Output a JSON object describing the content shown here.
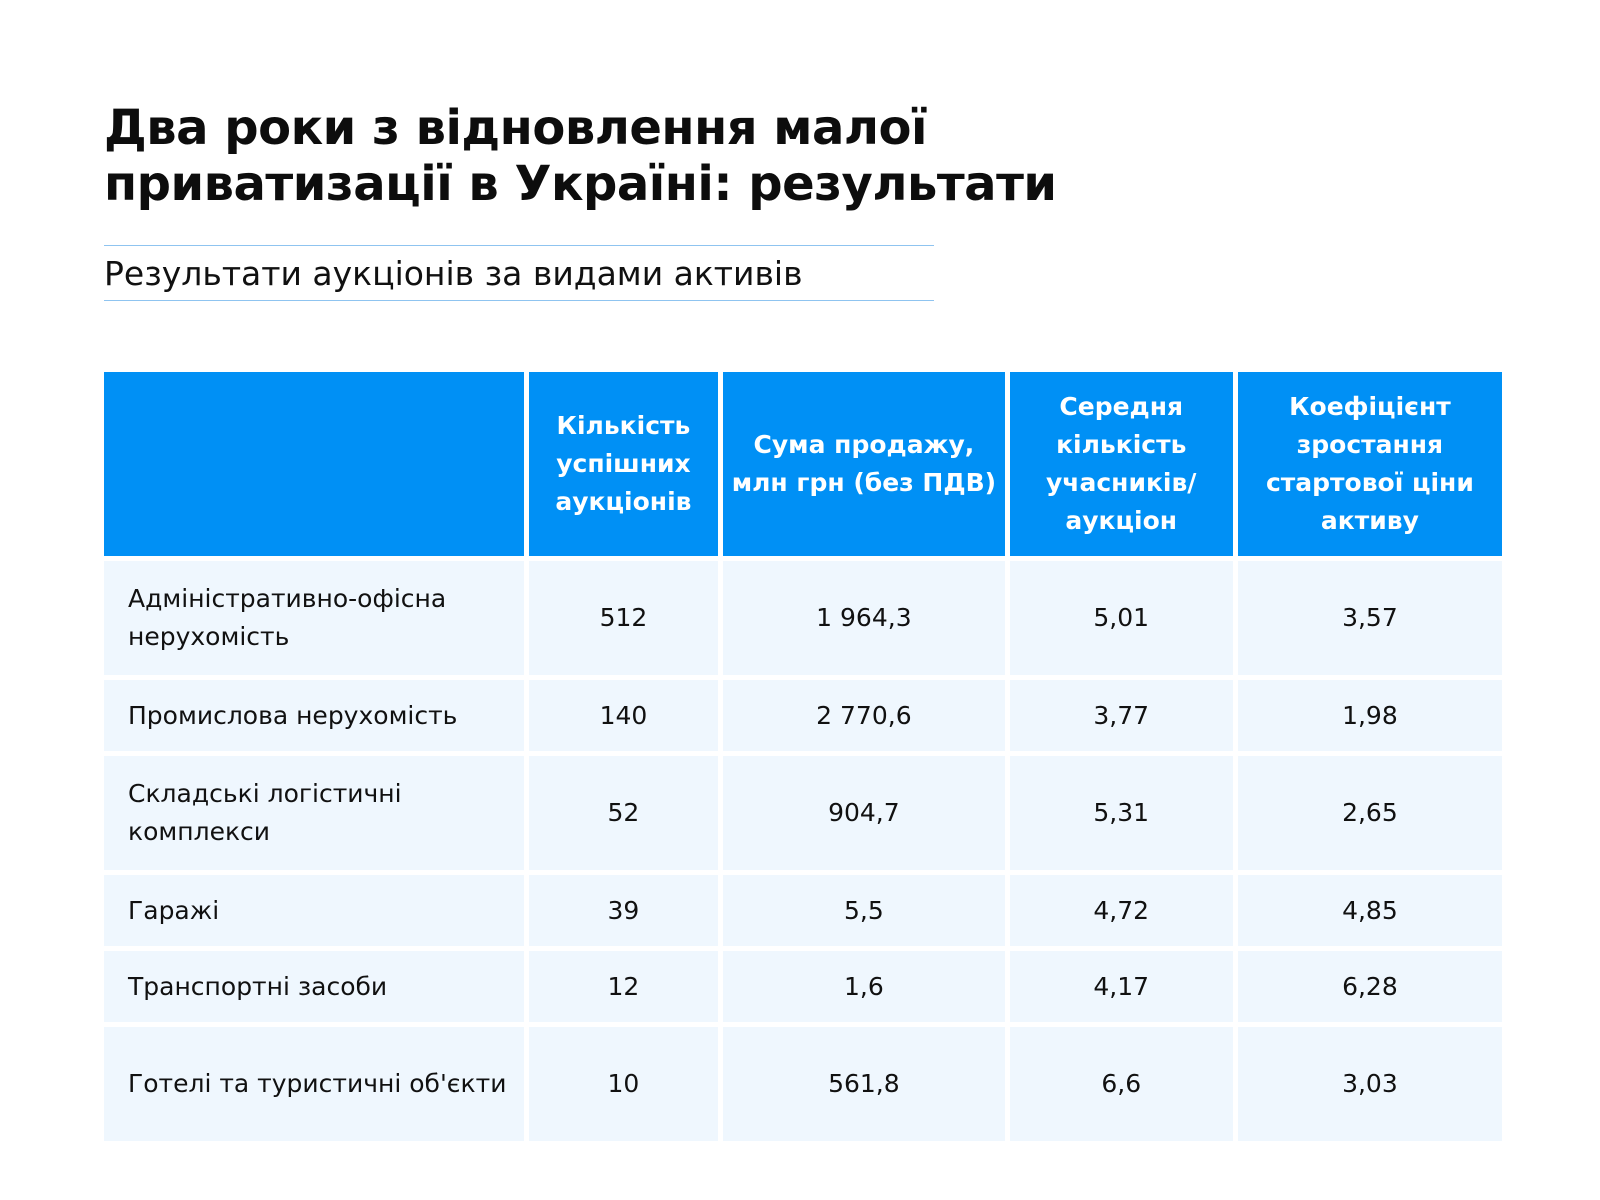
{
  "title": "Два роки з відновлення малої приватизації в Україні: результати",
  "subtitle": "Результати аукціонів за видами активів",
  "colors": {
    "header_bg": "#0090f5",
    "row_bg": "#eff7fe",
    "rule": "#8fc4f0"
  },
  "chart_data": {
    "type": "table",
    "title": "Два роки з відновлення малої приватизації в Україні: результати",
    "subtitle": "Результати аукціонів за видами активів",
    "columns": [
      "",
      "Кількість успішних аукціонів",
      "Сума продажу, млн грн (без ПДВ)",
      "Середня кількість учасників/ аукціон",
      "Коефіцієнт зростання стартової ціни активу"
    ],
    "rows": [
      [
        "Адміністративно-офісна нерухомість",
        "512",
        "1 964,3",
        "5,01",
        "3,57"
      ],
      [
        "Промислова нерухомість",
        "140",
        "2 770,6",
        "3,77",
        "1,98"
      ],
      [
        "Складські логістичні комплекси",
        "52",
        "904,7",
        "5,31",
        "2,65"
      ],
      [
        "Гаражі",
        "39",
        "5,5",
        "4,72",
        "4,85"
      ],
      [
        "Транспортні засоби",
        "12",
        "1,6",
        "4,17",
        "6,28"
      ],
      [
        "Готелі та туристичні об'єкти",
        "10",
        "561,8",
        "6,6",
        "3,03"
      ]
    ]
  }
}
